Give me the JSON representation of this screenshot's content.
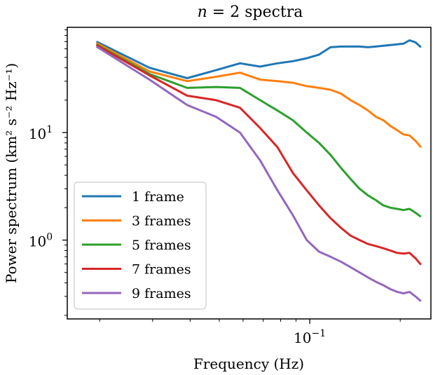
{
  "chart_data": {
    "type": "line",
    "title": "n = 2 spectra",
    "title_parts": {
      "var": "n",
      "rest": " = 2 spectra"
    },
    "xlabel": "Frequency (Hz)",
    "ylabel": "Power spectrum (km² s⁻² Hz⁻¹)",
    "xscale": "log",
    "yscale": "log",
    "xlim": [
      0.0156,
      0.253
    ],
    "ylim": [
      0.185,
      95
    ],
    "x_ticks": [
      {
        "value": 0.1,
        "base": "10",
        "exp": "−1"
      }
    ],
    "y_ticks": [
      {
        "value": 1,
        "base": "10",
        "exp": "0"
      },
      {
        "value": 10,
        "base": "10",
        "exp": "1"
      }
    ],
    "legend_position": "lower-left",
    "grid": false,
    "series": [
      {
        "name": "1 frame",
        "color": "#1f77b4",
        "x": [
          0.0195,
          0.0293,
          0.0391,
          0.0488,
          0.0586,
          0.0684,
          0.0781,
          0.0879,
          0.0977,
          0.1074,
          0.1172,
          0.127,
          0.1367,
          0.1465,
          0.1563,
          0.166,
          0.1758,
          0.1855,
          0.1953,
          0.2051,
          0.2148,
          0.2246,
          0.2344
        ],
        "y": [
          70,
          40,
          32,
          38,
          44,
          41,
          44,
          46,
          49,
          53,
          62,
          63,
          63,
          63,
          62,
          63,
          64,
          65,
          66,
          67,
          72,
          69,
          62
        ]
      },
      {
        "name": "3 frames",
        "color": "#ff7f0e",
        "x": [
          0.0195,
          0.0293,
          0.0391,
          0.0488,
          0.0586,
          0.0684,
          0.0781,
          0.0879,
          0.0977,
          0.1074,
          0.1172,
          0.127,
          0.1367,
          0.1465,
          0.1563,
          0.166,
          0.1758,
          0.1855,
          0.1953,
          0.2051,
          0.2148,
          0.2246,
          0.2344
        ],
        "y": [
          68,
          37,
          30,
          33,
          36,
          31,
          30,
          29,
          27,
          26,
          25,
          23,
          20,
          18,
          16,
          14,
          13,
          11.5,
          10.5,
          9.6,
          9.4,
          8.4,
          7.3
        ]
      },
      {
        "name": "5 frames",
        "color": "#2ca02c",
        "x": [
          0.0195,
          0.0293,
          0.0391,
          0.0488,
          0.0586,
          0.0684,
          0.0781,
          0.0879,
          0.0977,
          0.1074,
          0.1172,
          0.127,
          0.1367,
          0.1465,
          0.1563,
          0.166,
          0.1758,
          0.1855,
          0.1953,
          0.2051,
          0.2148,
          0.2246,
          0.2344
        ],
        "y": [
          66,
          35,
          26,
          26.5,
          26,
          20,
          16,
          13,
          10,
          8,
          6.2,
          4.7,
          3.7,
          3.0,
          2.6,
          2.35,
          2.1,
          2.0,
          1.95,
          1.9,
          1.95,
          1.8,
          1.65
        ]
      },
      {
        "name": "7 frames",
        "color": "#d62728",
        "x": [
          0.0195,
          0.0293,
          0.0391,
          0.0488,
          0.0586,
          0.0684,
          0.0781,
          0.0879,
          0.0977,
          0.1074,
          0.1172,
          0.127,
          0.1367,
          0.1465,
          0.1563,
          0.166,
          0.1758,
          0.1855,
          0.1953,
          0.2051,
          0.2148,
          0.2246,
          0.2344
        ],
        "y": [
          65,
          34,
          22,
          20,
          17,
          11,
          7.3,
          4.2,
          2.9,
          2.1,
          1.6,
          1.3,
          1.1,
          1.0,
          0.92,
          0.88,
          0.84,
          0.8,
          0.76,
          0.75,
          0.76,
          0.68,
          0.59
        ]
      },
      {
        "name": "9 frames",
        "color": "#9467bd",
        "x": [
          0.0195,
          0.0293,
          0.0391,
          0.0488,
          0.0586,
          0.0684,
          0.0781,
          0.0879,
          0.0977,
          0.1074,
          0.1172,
          0.127,
          0.1367,
          0.1465,
          0.1563,
          0.166,
          0.1758,
          0.1855,
          0.1953,
          0.2051,
          0.2148,
          0.2246,
          0.2344
        ],
        "y": [
          63,
          31,
          18,
          14,
          10,
          5.5,
          2.9,
          1.7,
          1.0,
          0.78,
          0.7,
          0.63,
          0.56,
          0.5,
          0.45,
          0.41,
          0.38,
          0.35,
          0.33,
          0.32,
          0.33,
          0.3,
          0.27
        ]
      }
    ]
  }
}
